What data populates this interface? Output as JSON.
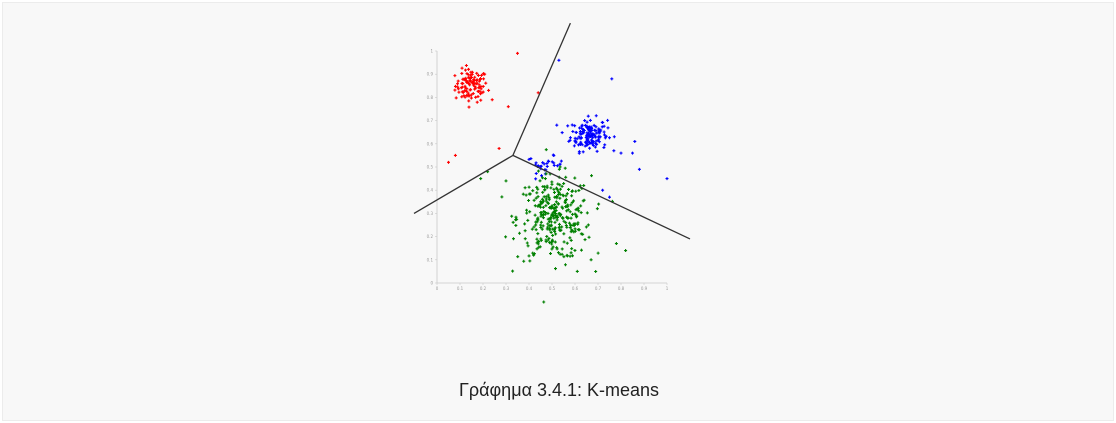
{
  "caption": "Γράφημα 3.4.1: K-means",
  "chart_data": {
    "type": "scatter",
    "title": "",
    "xlabel": "",
    "ylabel": "",
    "xlim": [
      0,
      1
    ],
    "ylim": [
      0,
      1
    ],
    "grid": false,
    "legend": "none",
    "x_ticks": [
      "0",
      "0.1",
      "0.2",
      "0.3",
      "0.4",
      "0.5",
      "0.6",
      "0.7",
      "0.8",
      "0.9",
      "1"
    ],
    "y_ticks": [
      "0",
      "0.1",
      "0.2",
      "0.3",
      "0.4",
      "0.5",
      "0.6",
      "0.7",
      "0.8",
      "0.9",
      "1"
    ],
    "series": [
      {
        "color": "#ff0000",
        "marker": "plus",
        "clusters": [
          {
            "center": [
              0.15,
              0.85
            ],
            "spread": [
              0.035,
              0.035
            ],
            "count": 110
          }
        ],
        "outliers": [
          [
            0.35,
            0.99
          ],
          [
            0.44,
            0.82
          ],
          [
            0.05,
            0.52
          ],
          [
            0.08,
            0.55
          ],
          [
            0.31,
            0.76
          ],
          [
            0.27,
            0.58
          ],
          [
            0.24,
            0.79
          ]
        ]
      },
      {
        "color": "#0000ff",
        "marker": "plus",
        "clusters": [
          {
            "center": [
              0.66,
              0.64
            ],
            "spread": [
              0.04,
              0.035
            ],
            "count": 150
          },
          {
            "center": [
              0.47,
              0.51
            ],
            "spread": [
              0.04,
              0.018
            ],
            "count": 30
          }
        ],
        "outliers": [
          [
            0.76,
            0.88
          ],
          [
            0.53,
            0.96
          ],
          [
            0.86,
            0.61
          ],
          [
            0.85,
            0.56
          ],
          [
            0.88,
            0.49
          ],
          [
            1.0,
            0.45
          ],
          [
            0.75,
            0.37
          ],
          [
            0.8,
            0.56
          ],
          [
            0.72,
            0.4
          ]
        ]
      },
      {
        "color": "#008000",
        "marker": "plus",
        "clusters": [
          {
            "center": [
              0.51,
              0.28
            ],
            "spread": [
              0.08,
              0.09
            ],
            "count": 330
          }
        ],
        "outliers": [
          [
            0.19,
            0.45
          ],
          [
            0.22,
            0.48
          ],
          [
            0.3,
            0.44
          ],
          [
            0.67,
            0.1
          ],
          [
            0.42,
            0.12
          ],
          [
            0.82,
            0.14
          ],
          [
            0.78,
            0.17
          ],
          [
            0.61,
            0.05
          ]
        ]
      }
    ],
    "boundaries": [
      {
        "points": [
          [
            -0.1,
            0.3
          ],
          [
            0.33,
            0.55
          ]
        ]
      },
      {
        "points": [
          [
            0.33,
            0.55
          ],
          [
            1.1,
            0.19
          ]
        ]
      },
      {
        "points": [
          [
            0.33,
            0.55
          ],
          [
            0.58,
            1.12
          ]
        ]
      }
    ]
  }
}
